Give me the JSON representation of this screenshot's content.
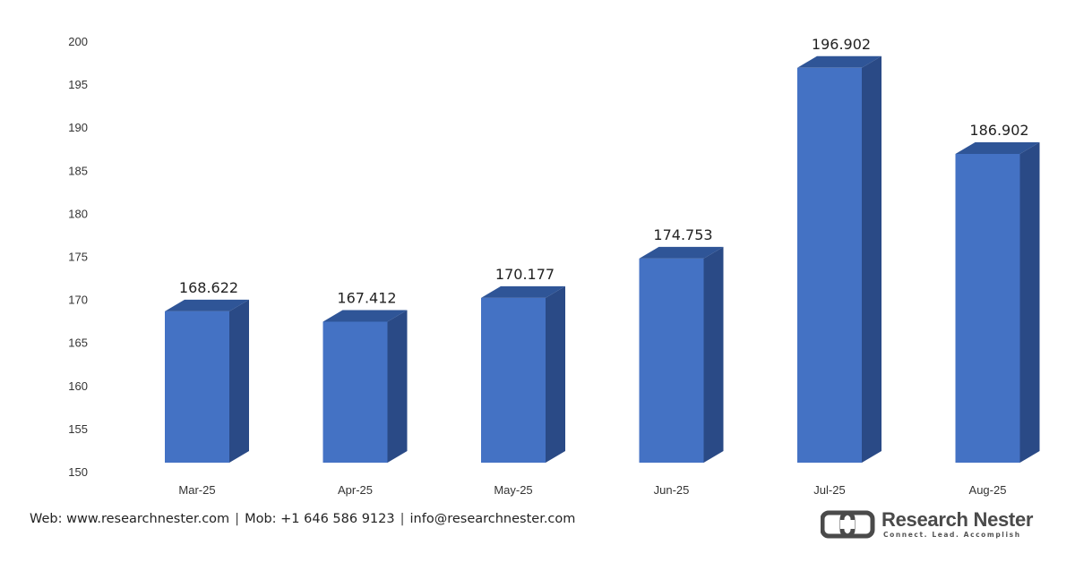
{
  "chart_data": {
    "type": "bar",
    "categories": [
      "Mar-25",
      "Apr-25",
      "May-25",
      "Jun-25",
      "Jul-25",
      "Aug-25"
    ],
    "values": [
      168.622,
      167.412,
      170.177,
      174.753,
      196.902,
      186.902
    ],
    "value_labels": [
      "168.622",
      "167.412",
      "170.177",
      "174.753",
      "196.902",
      "186.902"
    ],
    "ylim": [
      150,
      200
    ],
    "yticks": [
      "150",
      "155",
      "160",
      "165",
      "170",
      "175",
      "180",
      "185",
      "190",
      "195",
      "200"
    ],
    "title": "",
    "xlabel": "",
    "ylabel": "",
    "grid": false,
    "legend": "none",
    "colors": {
      "bar_front": "#4472c4",
      "bar_side": "#2a4a86",
      "bar_top": "#2f5597"
    }
  },
  "footer": {
    "web": "Web: www.researchnester.com",
    "mob": "Mob: +1 646 586 9123",
    "email": "info@researchnester.com",
    "separator": "|"
  },
  "brand": {
    "name": "Research Nester",
    "tagline": "Connect. Lead. Accomplish",
    "logo_icon": "research-nester-logo-icon"
  }
}
